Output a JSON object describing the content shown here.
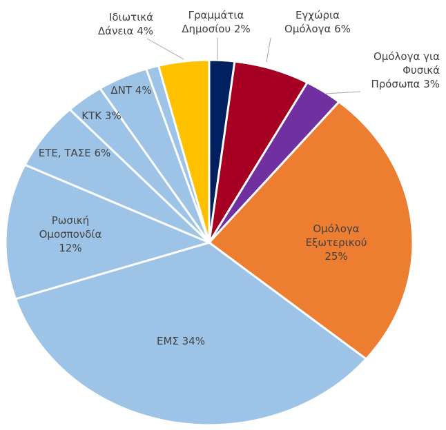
{
  "chart_data": {
    "type": "pie",
    "categories": [
      "Γραμμάτια Δημοσίου",
      "Εγχώρια Ομόλογα",
      "Ομόλογα για Φυσικά Πρόσωπα",
      "Ομόλογα Εξωτερικού",
      "ΕΜΣ",
      "Ρωσική Ομοσπονδία",
      "ΕΤΕ, ΤΑΣΕ",
      "ΚΤΚ",
      "ΔΝΤ",
      null,
      "Ιδιωτικά Δάνεια"
    ],
    "values": [
      2,
      6,
      3,
      25,
      34,
      12,
      6,
      3,
      4,
      1,
      4
    ],
    "value_labels": [
      "2%",
      "6%",
      "3%",
      "25%",
      "34%",
      "12%",
      "6%",
      "3%",
      "4%",
      null,
      "4%"
    ],
    "colors": [
      "#002060",
      "#a50021",
      "#7030a0",
      "#ed7d31",
      "#9dc3e6",
      "#9dc3e6",
      "#9dc3e6",
      "#9dc3e6",
      "#9dc3e6",
      "#9dc3e6",
      "#ffc000"
    ]
  }
}
